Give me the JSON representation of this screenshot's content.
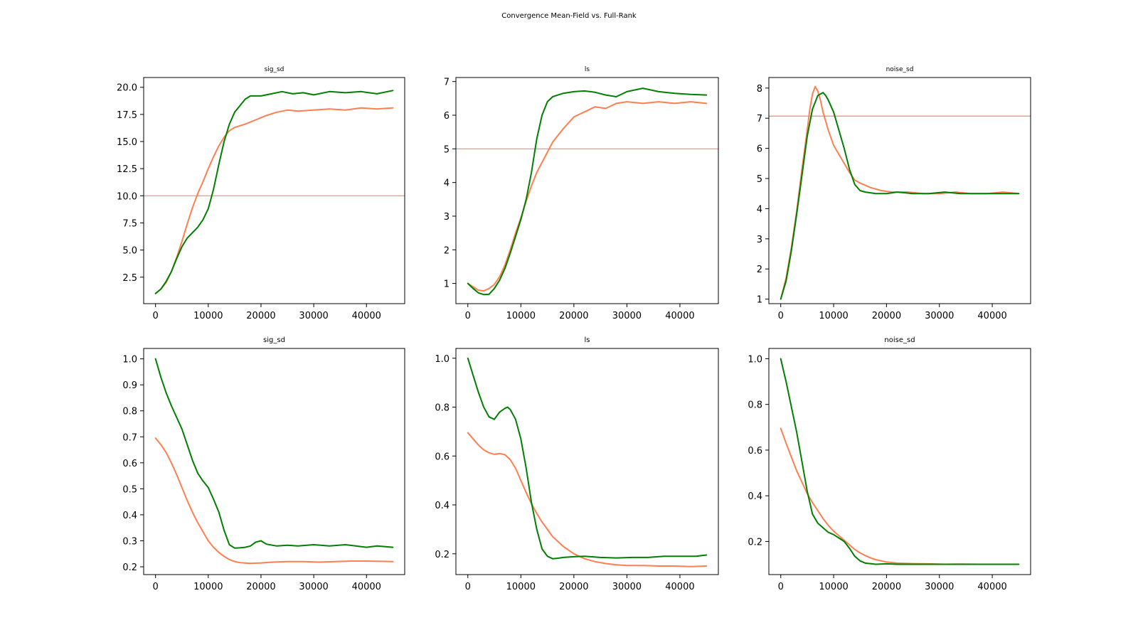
{
  "figure": {
    "title": "Convergence Mean-Field vs. Full-Rank"
  },
  "colors": {
    "mean_field": "#ff7f50",
    "full_rank": "#008000",
    "reference": "#ff8080"
  },
  "chart_data": [
    {
      "type": "line",
      "title": "sig_sd",
      "xlim": [
        -2250,
        47250
      ],
      "ylim": [
        0.06,
        20.9
      ],
      "xticks": [
        0,
        10000,
        20000,
        30000,
        40000
      ],
      "yticks": [
        2.5,
        5.0,
        7.5,
        10.0,
        12.5,
        15.0,
        17.5,
        20.0
      ],
      "ytick_labels": [
        "2.5",
        "5.0",
        "7.5",
        "10.0",
        "12.5",
        "15.0",
        "17.5",
        "20.0"
      ],
      "reference_line": 10.0,
      "series": [
        {
          "color": "#ff7f50",
          "x": [
            0,
            1000,
            2000,
            3000,
            4000,
            5000,
            6000,
            7000,
            8000,
            9000,
            10000,
            11000,
            12000,
            13000,
            14000,
            15000,
            17000,
            19000,
            21000,
            23000,
            25000,
            27000,
            30000,
            33000,
            36000,
            39000,
            42000,
            45000
          ],
          "y": [
            1.0,
            1.4,
            2.0,
            3.0,
            4.3,
            5.8,
            7.4,
            8.9,
            10.2,
            11.3,
            12.5,
            13.6,
            14.6,
            15.4,
            16.0,
            16.3,
            16.6,
            17.0,
            17.4,
            17.7,
            17.9,
            17.8,
            17.9,
            18.0,
            17.9,
            18.1,
            18.0,
            18.1
          ]
        },
        {
          "color": "#008000",
          "x": [
            0,
            1000,
            2000,
            3000,
            4000,
            5000,
            6000,
            7000,
            8000,
            9000,
            10000,
            11000,
            12000,
            13000,
            14000,
            15000,
            16000,
            17000,
            18000,
            20000,
            22000,
            24000,
            26000,
            28000,
            30000,
            33000,
            36000,
            39000,
            42000,
            45000
          ],
          "y": [
            1.0,
            1.4,
            2.1,
            3.0,
            4.2,
            5.3,
            6.1,
            6.6,
            7.1,
            7.8,
            8.8,
            10.6,
            12.9,
            15.0,
            16.6,
            17.7,
            18.3,
            18.9,
            19.2,
            19.2,
            19.4,
            19.6,
            19.4,
            19.5,
            19.3,
            19.6,
            19.5,
            19.6,
            19.4,
            19.7
          ]
        }
      ]
    },
    {
      "type": "line",
      "title": "ls",
      "xlim": [
        -2250,
        47250
      ],
      "ylim": [
        0.4,
        7.12
      ],
      "xticks": [
        0,
        10000,
        20000,
        30000,
        40000
      ],
      "yticks": [
        1,
        2,
        3,
        4,
        5,
        6,
        7
      ],
      "ytick_labels": [
        "1",
        "2",
        "3",
        "4",
        "5",
        "6",
        "7"
      ],
      "reference_line": 5.0,
      "series": [
        {
          "color": "#ff7f50",
          "x": [
            0,
            1000,
            2000,
            3000,
            4000,
            5000,
            6000,
            7000,
            8000,
            9000,
            10000,
            11000,
            12000,
            13000,
            14000,
            15000,
            16000,
            18000,
            20000,
            22000,
            24000,
            26000,
            28000,
            30000,
            33000,
            36000,
            39000,
            42000,
            45000
          ],
          "y": [
            1.0,
            0.9,
            0.8,
            0.78,
            0.85,
            0.97,
            1.2,
            1.55,
            2.0,
            2.5,
            2.95,
            3.45,
            3.9,
            4.3,
            4.6,
            4.9,
            5.2,
            5.6,
            5.95,
            6.1,
            6.25,
            6.2,
            6.35,
            6.4,
            6.35,
            6.4,
            6.35,
            6.4,
            6.35
          ]
        },
        {
          "color": "#008000",
          "x": [
            0,
            1000,
            2000,
            3000,
            4000,
            5000,
            6000,
            7000,
            8000,
            9000,
            10000,
            11000,
            12000,
            13000,
            14000,
            15000,
            16000,
            17000,
            18000,
            20000,
            22000,
            24000,
            26000,
            28000,
            30000,
            33000,
            36000,
            39000,
            42000,
            45000
          ],
          "y": [
            1.0,
            0.85,
            0.72,
            0.67,
            0.68,
            0.85,
            1.1,
            1.45,
            1.9,
            2.4,
            2.9,
            3.5,
            4.3,
            5.3,
            6.0,
            6.4,
            6.55,
            6.6,
            6.65,
            6.7,
            6.72,
            6.68,
            6.6,
            6.55,
            6.7,
            6.8,
            6.7,
            6.65,
            6.62,
            6.6
          ]
        }
      ]
    },
    {
      "type": "line",
      "title": "noise_sd",
      "xlim": [
        -2250,
        47250
      ],
      "ylim": [
        0.85,
        8.35
      ],
      "xticks": [
        0,
        10000,
        20000,
        30000,
        40000
      ],
      "yticks": [
        1,
        2,
        3,
        4,
        5,
        6,
        7,
        8
      ],
      "ytick_labels": [
        "1",
        "2",
        "3",
        "4",
        "5",
        "6",
        "7",
        "8"
      ],
      "reference_line": 7.07,
      "series": [
        {
          "color": "#ff7f50",
          "x": [
            0,
            1000,
            2000,
            3000,
            4000,
            5000,
            5500,
            6000,
            6500,
            7000,
            7500,
            8000,
            9000,
            10000,
            11000,
            12000,
            13000,
            14000,
            15000,
            17000,
            19000,
            21000,
            24000,
            27000,
            30000,
            33000,
            36000,
            39000,
            42000,
            45000
          ],
          "y": [
            1.0,
            1.7,
            2.7,
            3.9,
            5.3,
            6.6,
            7.3,
            7.8,
            8.05,
            7.9,
            7.6,
            7.2,
            6.6,
            6.1,
            5.8,
            5.5,
            5.2,
            4.95,
            4.85,
            4.7,
            4.6,
            4.55,
            4.55,
            4.5,
            4.5,
            4.55,
            4.5,
            4.5,
            4.55,
            4.5
          ]
        },
        {
          "color": "#008000",
          "x": [
            0,
            1000,
            2000,
            3000,
            4000,
            5000,
            6000,
            7000,
            7500,
            8000,
            8500,
            9000,
            10000,
            11000,
            12000,
            13000,
            14000,
            15000,
            16000,
            18000,
            20000,
            22000,
            25000,
            28000,
            31000,
            34000,
            37000,
            40000,
            43000,
            45000
          ],
          "y": [
            1.0,
            1.6,
            2.6,
            3.8,
            5.1,
            6.4,
            7.3,
            7.75,
            7.8,
            7.85,
            7.75,
            7.6,
            7.2,
            6.6,
            6.0,
            5.3,
            4.8,
            4.6,
            4.55,
            4.5,
            4.5,
            4.55,
            4.5,
            4.5,
            4.55,
            4.5,
            4.5,
            4.5,
            4.5,
            4.5
          ]
        }
      ]
    },
    {
      "type": "line",
      "title": "sig_sd",
      "xlim": [
        -2250,
        47250
      ],
      "ylim": [
        0.17,
        1.04
      ],
      "xticks": [
        0,
        10000,
        20000,
        30000,
        40000
      ],
      "yticks": [
        0.2,
        0.3,
        0.4,
        0.5,
        0.6,
        0.7,
        0.8,
        0.9,
        1.0
      ],
      "ytick_labels": [
        "0.2",
        "0.3",
        "0.4",
        "0.5",
        "0.6",
        "0.7",
        "0.8",
        "0.9",
        "1.0"
      ],
      "reference_line": null,
      "series": [
        {
          "color": "#ff7f50",
          "x": [
            0,
            1000,
            2000,
            3000,
            4000,
            5000,
            6000,
            7000,
            8000,
            9000,
            10000,
            11000,
            12000,
            13000,
            14000,
            15000,
            16000,
            18000,
            20000,
            22000,
            25000,
            28000,
            31000,
            34000,
            37000,
            40000,
            43000,
            45000
          ],
          "y": [
            0.695,
            0.67,
            0.64,
            0.6,
            0.555,
            0.505,
            0.455,
            0.41,
            0.37,
            0.335,
            0.3,
            0.275,
            0.255,
            0.24,
            0.228,
            0.22,
            0.216,
            0.213,
            0.215,
            0.218,
            0.22,
            0.22,
            0.218,
            0.22,
            0.222,
            0.222,
            0.221,
            0.22
          ]
        },
        {
          "color": "#008000",
          "x": [
            0,
            1000,
            2000,
            3000,
            4000,
            5000,
            6000,
            7000,
            8000,
            9000,
            10000,
            11000,
            12000,
            13000,
            14000,
            15000,
            16000,
            17000,
            18000,
            19000,
            20000,
            21000,
            23000,
            25000,
            27000,
            30000,
            33000,
            36000,
            38000,
            40000,
            42000,
            45000
          ],
          "y": [
            1.0,
            0.93,
            0.87,
            0.82,
            0.775,
            0.73,
            0.67,
            0.61,
            0.56,
            0.53,
            0.505,
            0.46,
            0.41,
            0.34,
            0.285,
            0.272,
            0.273,
            0.275,
            0.28,
            0.295,
            0.3,
            0.287,
            0.28,
            0.283,
            0.28,
            0.285,
            0.28,
            0.285,
            0.28,
            0.275,
            0.28,
            0.275
          ]
        }
      ]
    },
    {
      "type": "line",
      "title": "ls",
      "xlim": [
        -2250,
        47250
      ],
      "ylim": [
        0.115,
        1.04
      ],
      "xticks": [
        0,
        10000,
        20000,
        30000,
        40000
      ],
      "yticks": [
        0.2,
        0.4,
        0.6,
        0.8,
        1.0
      ],
      "ytick_labels": [
        "0.2",
        "0.4",
        "0.6",
        "0.8",
        "1.0"
      ],
      "reference_line": null,
      "series": [
        {
          "color": "#ff7f50",
          "x": [
            0,
            1000,
            2000,
            3000,
            4000,
            5000,
            6000,
            7000,
            8000,
            9000,
            10000,
            11000,
            12000,
            13000,
            14000,
            15000,
            16000,
            18000,
            20000,
            22000,
            24000,
            26000,
            28000,
            30000,
            33000,
            36000,
            39000,
            42000,
            45000
          ],
          "y": [
            0.695,
            0.67,
            0.645,
            0.625,
            0.613,
            0.607,
            0.61,
            0.605,
            0.585,
            0.55,
            0.5,
            0.45,
            0.405,
            0.365,
            0.33,
            0.3,
            0.27,
            0.23,
            0.2,
            0.18,
            0.168,
            0.16,
            0.155,
            0.152,
            0.152,
            0.15,
            0.15,
            0.148,
            0.15
          ]
        },
        {
          "color": "#008000",
          "x": [
            0,
            1000,
            2000,
            3000,
            4000,
            5000,
            6000,
            7000,
            7500,
            8000,
            9000,
            10000,
            11000,
            12000,
            13000,
            14000,
            15000,
            16000,
            17000,
            18000,
            20000,
            22000,
            25000,
            28000,
            31000,
            34000,
            37000,
            40000,
            43000,
            45000
          ],
          "y": [
            1.0,
            0.93,
            0.86,
            0.8,
            0.76,
            0.75,
            0.78,
            0.795,
            0.8,
            0.79,
            0.75,
            0.67,
            0.55,
            0.41,
            0.3,
            0.22,
            0.19,
            0.18,
            0.182,
            0.185,
            0.188,
            0.19,
            0.185,
            0.183,
            0.185,
            0.185,
            0.19,
            0.19,
            0.19,
            0.195
          ]
        }
      ]
    },
    {
      "type": "line",
      "title": "noise_sd",
      "xlim": [
        -2250,
        47250
      ],
      "ylim": [
        0.055,
        1.045
      ],
      "xticks": [
        0,
        10000,
        20000,
        30000,
        40000
      ],
      "yticks": [
        0.2,
        0.4,
        0.6,
        0.8,
        1.0
      ],
      "ytick_labels": [
        "0.2",
        "0.4",
        "0.6",
        "0.8",
        "1.0"
      ],
      "reference_line": null,
      "series": [
        {
          "color": "#ff7f50",
          "x": [
            0,
            1000,
            2000,
            3000,
            4000,
            5000,
            6000,
            7000,
            8000,
            9000,
            10000,
            11000,
            12000,
            13000,
            14000,
            15000,
            16000,
            17000,
            18000,
            20000,
            22000,
            25000,
            28000,
            31000,
            34000,
            37000,
            40000,
            43000,
            45000
          ],
          "y": [
            0.695,
            0.63,
            0.57,
            0.51,
            0.46,
            0.41,
            0.37,
            0.335,
            0.3,
            0.27,
            0.245,
            0.225,
            0.205,
            0.185,
            0.165,
            0.15,
            0.138,
            0.128,
            0.12,
            0.11,
            0.105,
            0.103,
            0.102,
            0.1,
            0.101,
            0.1,
            0.1,
            0.1,
            0.1
          ]
        },
        {
          "color": "#008000",
          "x": [
            0,
            500,
            1000,
            2000,
            3000,
            4000,
            5000,
            6000,
            7000,
            8000,
            9000,
            10000,
            11000,
            12000,
            13000,
            14000,
            15000,
            16000,
            18000,
            20000,
            22000,
            25000,
            28000,
            31000,
            34000,
            37000,
            40000,
            43000,
            45000
          ],
          "y": [
            1.0,
            0.95,
            0.9,
            0.79,
            0.68,
            0.55,
            0.42,
            0.32,
            0.28,
            0.26,
            0.24,
            0.23,
            0.215,
            0.2,
            0.17,
            0.135,
            0.115,
            0.105,
            0.1,
            0.102,
            0.1,
            0.1,
            0.1,
            0.1,
            0.1,
            0.1,
            0.1,
            0.1,
            0.1
          ]
        }
      ]
    }
  ]
}
